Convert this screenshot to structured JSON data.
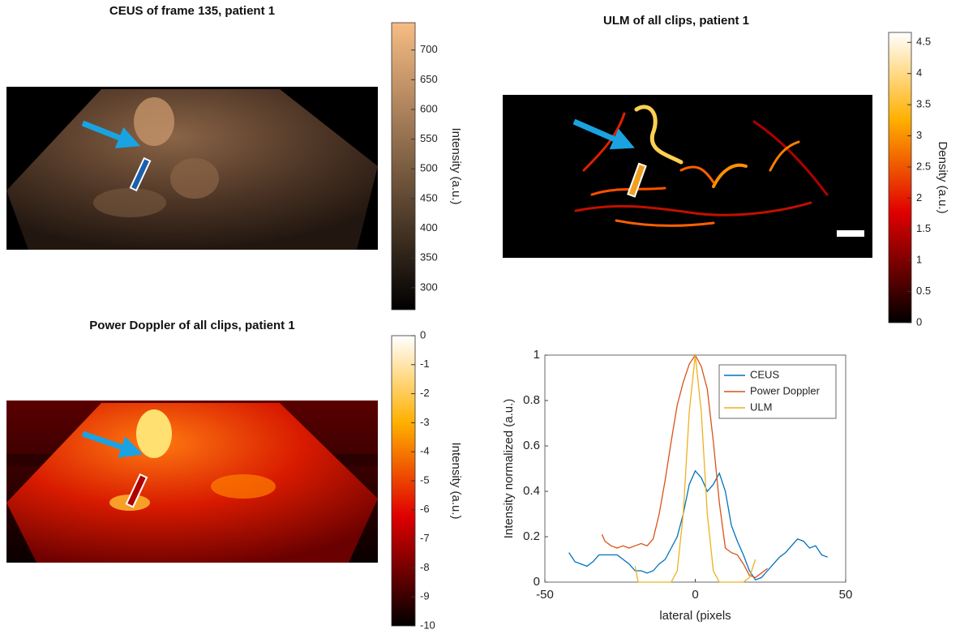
{
  "chart_data": [
    {
      "type": "image",
      "title": "CEUS of frame 135, patient 1",
      "colorbar_label": "Intensity (a.u.)",
      "colormap": "copper",
      "ylim": [
        263,
        746
      ],
      "yticks": [
        300,
        350,
        400,
        450,
        500,
        550,
        600,
        650,
        700
      ]
    },
    {
      "type": "image",
      "title": "ULM of all clips, patient 1",
      "colorbar_label": "Density (a.u.)",
      "colormap": "hot",
      "ylim": [
        0,
        4.66
      ],
      "yticks": [
        0,
        0.5,
        1,
        1.5,
        2,
        2.5,
        3,
        3.5,
        4,
        4.5
      ]
    },
    {
      "type": "image",
      "title": "Power Doppler of all clips, patient 1",
      "colorbar_label": "Intensity (a.u.)",
      "colormap": "hot",
      "ylim": [
        -10,
        0
      ],
      "yticks": [
        -10,
        -9,
        -8,
        -7,
        -6,
        -5,
        -4,
        -3,
        -2,
        -1,
        0
      ]
    },
    {
      "type": "line",
      "xlabel": "lateral (pixels",
      "ylabel": "Intensity normalized (a.u.)",
      "xlim": [
        -50,
        50
      ],
      "xticks": [
        -50,
        0,
        50
      ],
      "ylim": [
        0,
        1
      ],
      "yticks": [
        0,
        0.2,
        0.4,
        0.6,
        0.8,
        1
      ],
      "legend": "upper right",
      "series": [
        {
          "name": "CEUS",
          "color": "#0072bd",
          "x": [
            -42,
            -40,
            -38,
            -36,
            -34,
            -32,
            -30,
            -28,
            -26,
            -24,
            -22,
            -20,
            -18,
            -16,
            -14,
            -12,
            -10,
            -8,
            -6,
            -4,
            -2,
            0,
            2,
            4,
            6,
            8,
            10,
            12,
            14,
            16,
            18,
            20,
            22,
            24,
            26,
            28,
            30,
            32,
            34,
            36,
            38,
            40,
            42,
            44
          ],
          "values": [
            0.13,
            0.09,
            0.08,
            0.07,
            0.09,
            0.12,
            0.12,
            0.12,
            0.12,
            0.1,
            0.08,
            0.05,
            0.05,
            0.04,
            0.05,
            0.08,
            0.1,
            0.15,
            0.2,
            0.3,
            0.43,
            0.49,
            0.46,
            0.4,
            0.43,
            0.48,
            0.4,
            0.25,
            0.18,
            0.12,
            0.05,
            0.01,
            0.02,
            0.05,
            0.08,
            0.11,
            0.13,
            0.16,
            0.19,
            0.18,
            0.15,
            0.16,
            0.12,
            0.11
          ]
        },
        {
          "name": "Power Doppler",
          "color": "#d95319",
          "x": [
            -31,
            -30,
            -28,
            -26,
            -24,
            -22,
            -20,
            -18,
            -16,
            -14,
            -12,
            -10,
            -8,
            -6,
            -4,
            -2,
            0,
            2,
            4,
            6,
            8,
            10,
            12,
            14,
            16,
            18,
            20,
            22,
            24
          ],
          "values": [
            0.21,
            0.18,
            0.16,
            0.15,
            0.16,
            0.15,
            0.16,
            0.17,
            0.16,
            0.19,
            0.3,
            0.45,
            0.62,
            0.78,
            0.88,
            0.96,
            1,
            0.95,
            0.85,
            0.62,
            0.35,
            0.15,
            0.13,
            0.12,
            0.08,
            0.03,
            0.02,
            0.04,
            0.06
          ]
        },
        {
          "name": "ULM",
          "color": "#edb120",
          "x": [
            -20,
            -19,
            -16,
            -12,
            -8,
            -6,
            -4,
            -2,
            0,
            2,
            4,
            6,
            8,
            12,
            16,
            18,
            20
          ],
          "values": [
            0.07,
            0,
            0,
            0,
            0,
            0.05,
            0.3,
            0.75,
            1,
            0.75,
            0.3,
            0.05,
            0,
            0,
            0,
            0.02,
            0.1
          ]
        }
      ]
    }
  ]
}
